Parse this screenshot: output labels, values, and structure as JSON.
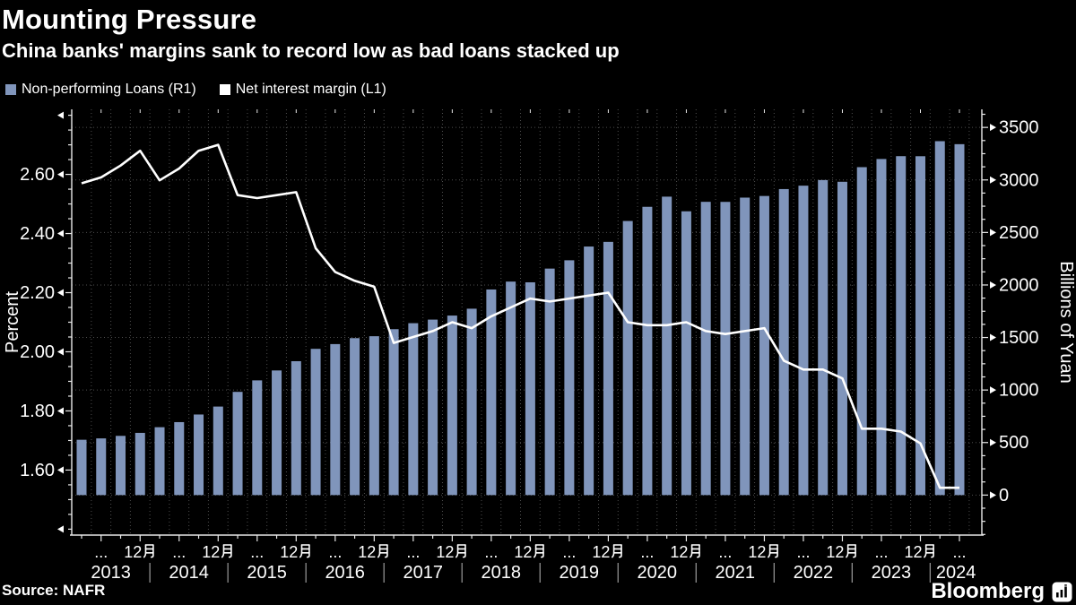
{
  "header": {
    "title": "Mounting Pressure",
    "subtitle": "China banks' margins sank to record low as bad loans stacked up"
  },
  "legend": {
    "items": [
      {
        "label": "Non-performing Loans (R1)",
        "color": "#8095bb",
        "type": "bar"
      },
      {
        "label": "Net interest margin (L1)",
        "color": "#ffffff",
        "type": "line"
      }
    ]
  },
  "footer": {
    "source": "Source: NAFR",
    "brand": "Bloomberg"
  },
  "colors": {
    "background": "#000000",
    "bar": "#8095bb",
    "line": "#ffffff",
    "grid": "#4e4e4e",
    "axis": "#e8e8e8",
    "year_separator": "#8f8f8f"
  },
  "chart_data": {
    "type": "combo",
    "x_quarters": [
      "2013Q1",
      "2013Q2",
      "2013Q3",
      "2013Q4",
      "2014Q1",
      "2014Q2",
      "2014Q3",
      "2014Q4",
      "2015Q1",
      "2015Q2",
      "2015Q3",
      "2015Q4",
      "2016Q1",
      "2016Q2",
      "2016Q3",
      "2016Q4",
      "2017Q1",
      "2017Q2",
      "2017Q3",
      "2017Q4",
      "2018Q1",
      "2018Q2",
      "2018Q3",
      "2018Q4",
      "2019Q1",
      "2019Q2",
      "2019Q3",
      "2019Q4",
      "2020Q1",
      "2020Q2",
      "2020Q3",
      "2020Q4",
      "2021Q1",
      "2021Q2",
      "2021Q3",
      "2021Q4",
      "2022Q1",
      "2022Q2",
      "2022Q3",
      "2022Q4",
      "2023Q1",
      "2023Q2",
      "2023Q3",
      "2023Q4",
      "2024Q1",
      "2024Q2"
    ],
    "series": [
      {
        "name": "Non-performing Loans (R1)",
        "type": "bar",
        "axis": "right",
        "unit": "Billions of Yuan",
        "color": "#8095bb",
        "values": [
          526.5,
          539.5,
          563.6,
          592.1,
          646.1,
          694.4,
          766.9,
          842.6,
          982.5,
          1091.9,
          1186.3,
          1274.4,
          1392.1,
          1437.3,
          1493.9,
          1512.3,
          1579.5,
          1636.3,
          1670.4,
          1708.8,
          1774.2,
          1957.1,
          2032.2,
          2025.4,
          2156.1,
          2235.2,
          2366.0,
          2410.4,
          2609.1,
          2744.1,
          2840.8,
          2701.5,
          2791.6,
          2791.0,
          2831.7,
          2847.3,
          2913.1,
          2945.4,
          2998.9,
          2982.6,
          3121.7,
          3199.4,
          3226.4,
          3225.8,
          3369.0,
          3340.4
        ]
      },
      {
        "name": "Net interest margin (L1)",
        "type": "line",
        "axis": "left",
        "unit": "Percent",
        "color": "#ffffff",
        "values": [
          2.57,
          2.59,
          2.63,
          2.68,
          2.58,
          2.62,
          2.68,
          2.7,
          2.53,
          2.52,
          2.53,
          2.54,
          2.35,
          2.27,
          2.24,
          2.22,
          2.03,
          2.05,
          2.07,
          2.1,
          2.08,
          2.12,
          2.15,
          2.18,
          2.17,
          2.18,
          2.19,
          2.2,
          2.1,
          2.09,
          2.09,
          2.1,
          2.07,
          2.06,
          2.07,
          2.08,
          1.97,
          1.94,
          1.94,
          1.91,
          1.74,
          1.74,
          1.73,
          1.69,
          1.54,
          1.54
        ]
      }
    ],
    "left_axis": {
      "title": "Percent",
      "tick_labels": [
        "1.60",
        "1.80",
        "2.00",
        "2.20",
        "2.40",
        "2.60"
      ],
      "tick_values": [
        1.6,
        1.8,
        2.0,
        2.2,
        2.4,
        2.6
      ],
      "minor_step": 0.05,
      "range": [
        1.38,
        2.82
      ]
    },
    "right_axis": {
      "title": "Billions of Yuan",
      "tick_labels": [
        "0",
        "500",
        "1000",
        "1500",
        "2000",
        "2500",
        "3000",
        "3500"
      ],
      "tick_values": [
        0,
        500,
        1000,
        1500,
        2000,
        2500,
        3000,
        3500
      ],
      "minor_step": 125,
      "range": [
        -381,
        3672
      ]
    },
    "x_axis": {
      "years": [
        "2013",
        "2014",
        "2015",
        "2016",
        "2017",
        "2018",
        "2019",
        "2020",
        "2021",
        "2022",
        "2023",
        "2024"
      ],
      "june_label": "...",
      "december_label": "12月"
    },
    "grid": "dotted",
    "legend_position": "top-left"
  }
}
